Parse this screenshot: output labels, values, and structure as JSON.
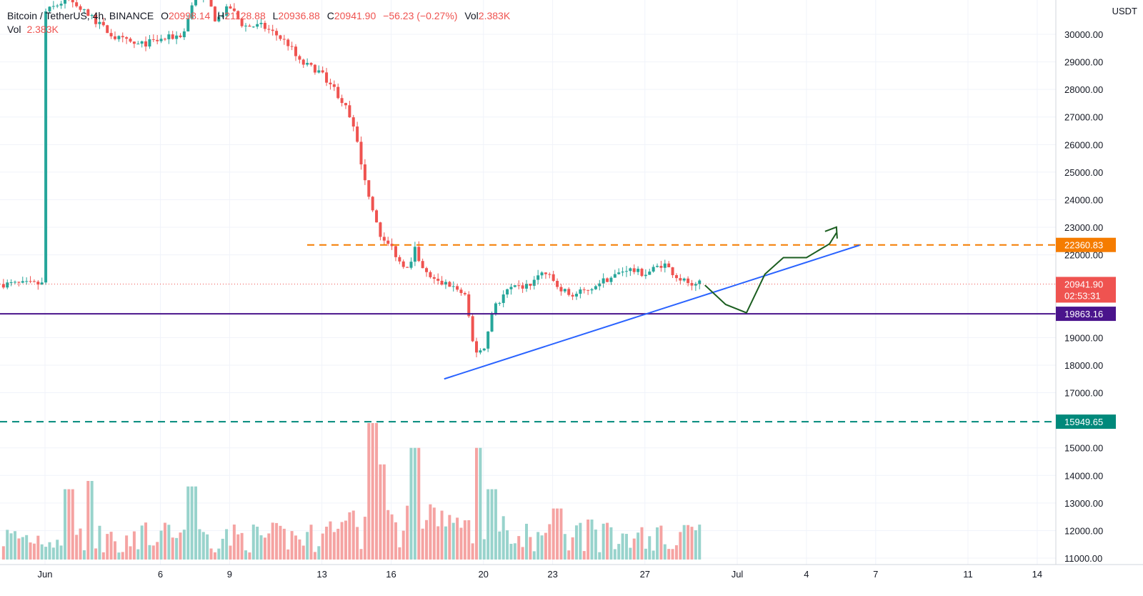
{
  "legend": {
    "symbol": "Bitcoin / TetherUS, 4h, BINANCE",
    "o_label": "O",
    "o_value": "20998.14",
    "h_label": "H",
    "h_value": "21128.88",
    "l_label": "L",
    "l_value": "20936.88",
    "c_label": "C",
    "c_value": "20941.90",
    "change": "−56.23 (−0.27%)",
    "vol_label": "Vol",
    "vol_value": "2.383K"
  },
  "vol_legend": {
    "label": "Vol",
    "value": "2.383K"
  },
  "currency": "USDT",
  "colors": {
    "up": "#26a69a",
    "down": "#ef5350",
    "up_vol": "#98d3cc",
    "down_vol": "#f5a3a2",
    "orange": "#f57c00",
    "purple": "#4a148c",
    "teal": "#00897b",
    "trend": "#2962ff",
    "drawing": "#1b5e20"
  },
  "price_labels": {
    "current": "20941.90",
    "countdown": "02:53:31",
    "resistance": "22360.83",
    "support": "19863.16",
    "lower": "15949.65"
  },
  "chart_data": {
    "type": "candlestick",
    "symbol": "Bitcoin / TetherUS",
    "interval": "4h",
    "exchange": "BINANCE",
    "y_axis_unit": "USDT",
    "ylim": [
      10800,
      32000
    ],
    "y_ticks": [
      "30000.00",
      "29000.00",
      "28000.00",
      "27000.00",
      "26000.00",
      "25000.00",
      "24000.00",
      "23000.00",
      "22000.00",
      "19000.00",
      "18000.00",
      "17000.00",
      "15000.00",
      "14000.00",
      "13000.00",
      "12000.00",
      "11000.00"
    ],
    "x_ticks": [
      {
        "label": "Jun",
        "day": 1
      },
      {
        "label": "6",
        "day": 6
      },
      {
        "label": "9",
        "day": 9
      },
      {
        "label": "13",
        "day": 13
      },
      {
        "label": "16",
        "day": 16
      },
      {
        "label": "20",
        "day": 20
      },
      {
        "label": "23",
        "day": 23
      },
      {
        "label": "27",
        "day": 27
      },
      {
        "label": "Jul",
        "day": 31
      },
      {
        "label": "4",
        "day": 34
      },
      {
        "label": "7",
        "day": 37
      },
      {
        "label": "11",
        "day": 41
      },
      {
        "label": "14",
        "day": 44
      }
    ],
    "price_path": [
      [
        0.0,
        30800
      ],
      [
        1.0,
        31300
      ],
      [
        2.0,
        30600
      ],
      [
        3.0,
        29900
      ],
      [
        4.0,
        29600
      ],
      [
        5.0,
        29800
      ],
      [
        6.0,
        30000
      ],
      [
        6.4,
        31200
      ],
      [
        7.0,
        31400
      ],
      [
        7.4,
        30500
      ],
      [
        8.0,
        31000
      ],
      [
        8.6,
        30300
      ],
      [
        9.4,
        30300
      ],
      [
        10.0,
        30000
      ],
      [
        10.6,
        29600
      ],
      [
        11.0,
        29000
      ],
      [
        11.8,
        28700
      ],
      [
        12.4,
        28200
      ],
      [
        13.0,
        27400
      ],
      [
        13.4,
        26500
      ],
      [
        13.8,
        25000
      ],
      [
        14.2,
        23600
      ],
      [
        14.6,
        22600
      ],
      [
        15.0,
        22300
      ],
      [
        15.4,
        21700
      ],
      [
        15.8,
        21600
      ],
      [
        16.0,
        22400
      ],
      [
        16.4,
        21400
      ],
      [
        17.0,
        21000
      ],
      [
        17.6,
        20900
      ],
      [
        18.2,
        20500
      ],
      [
        18.6,
        18500
      ],
      [
        19.0,
        18500
      ],
      [
        19.4,
        20000
      ],
      [
        20.0,
        20700
      ],
      [
        21.0,
        20900
      ],
      [
        21.6,
        21400
      ],
      [
        22.2,
        20900
      ],
      [
        22.8,
        20500
      ],
      [
        23.4,
        20700
      ],
      [
        24.0,
        21000
      ],
      [
        24.6,
        21200
      ],
      [
        25.2,
        21500
      ],
      [
        26.0,
        21300
      ],
      [
        26.8,
        21700
      ],
      [
        27.4,
        21200
      ],
      [
        27.8,
        21000
      ],
      [
        28.0,
        20900
      ],
      [
        28.3,
        21000
      ],
      [
        28.4,
        20941.9
      ]
    ],
    "volume_spikes": [
      [
        1.0,
        13500
      ],
      [
        2.0,
        13800
      ],
      [
        6.4,
        13600
      ],
      [
        14.2,
        15900
      ],
      [
        14.6,
        14400
      ],
      [
        16.0,
        15000
      ],
      [
        18.8,
        15000
      ],
      [
        19.4,
        13500
      ],
      [
        22.2,
        12800
      ],
      [
        23.6,
        12400
      ],
      [
        27.8,
        12200
      ]
    ],
    "annotations": {
      "resistance_dashed": 22360.83,
      "support_line": 19863.16,
      "lower_dashed": 15949.65,
      "trendline": [
        [
          17.3,
          17500
        ],
        [
          35.3,
          22350
        ]
      ],
      "projection_path": [
        [
          28.6,
          20900
        ],
        [
          29.5,
          20200
        ],
        [
          30.4,
          19900
        ],
        [
          31.2,
          21300
        ],
        [
          32.0,
          21900
        ],
        [
          33.0,
          21900
        ],
        [
          34.0,
          22400
        ],
        [
          34.3,
          22800
        ]
      ]
    }
  }
}
